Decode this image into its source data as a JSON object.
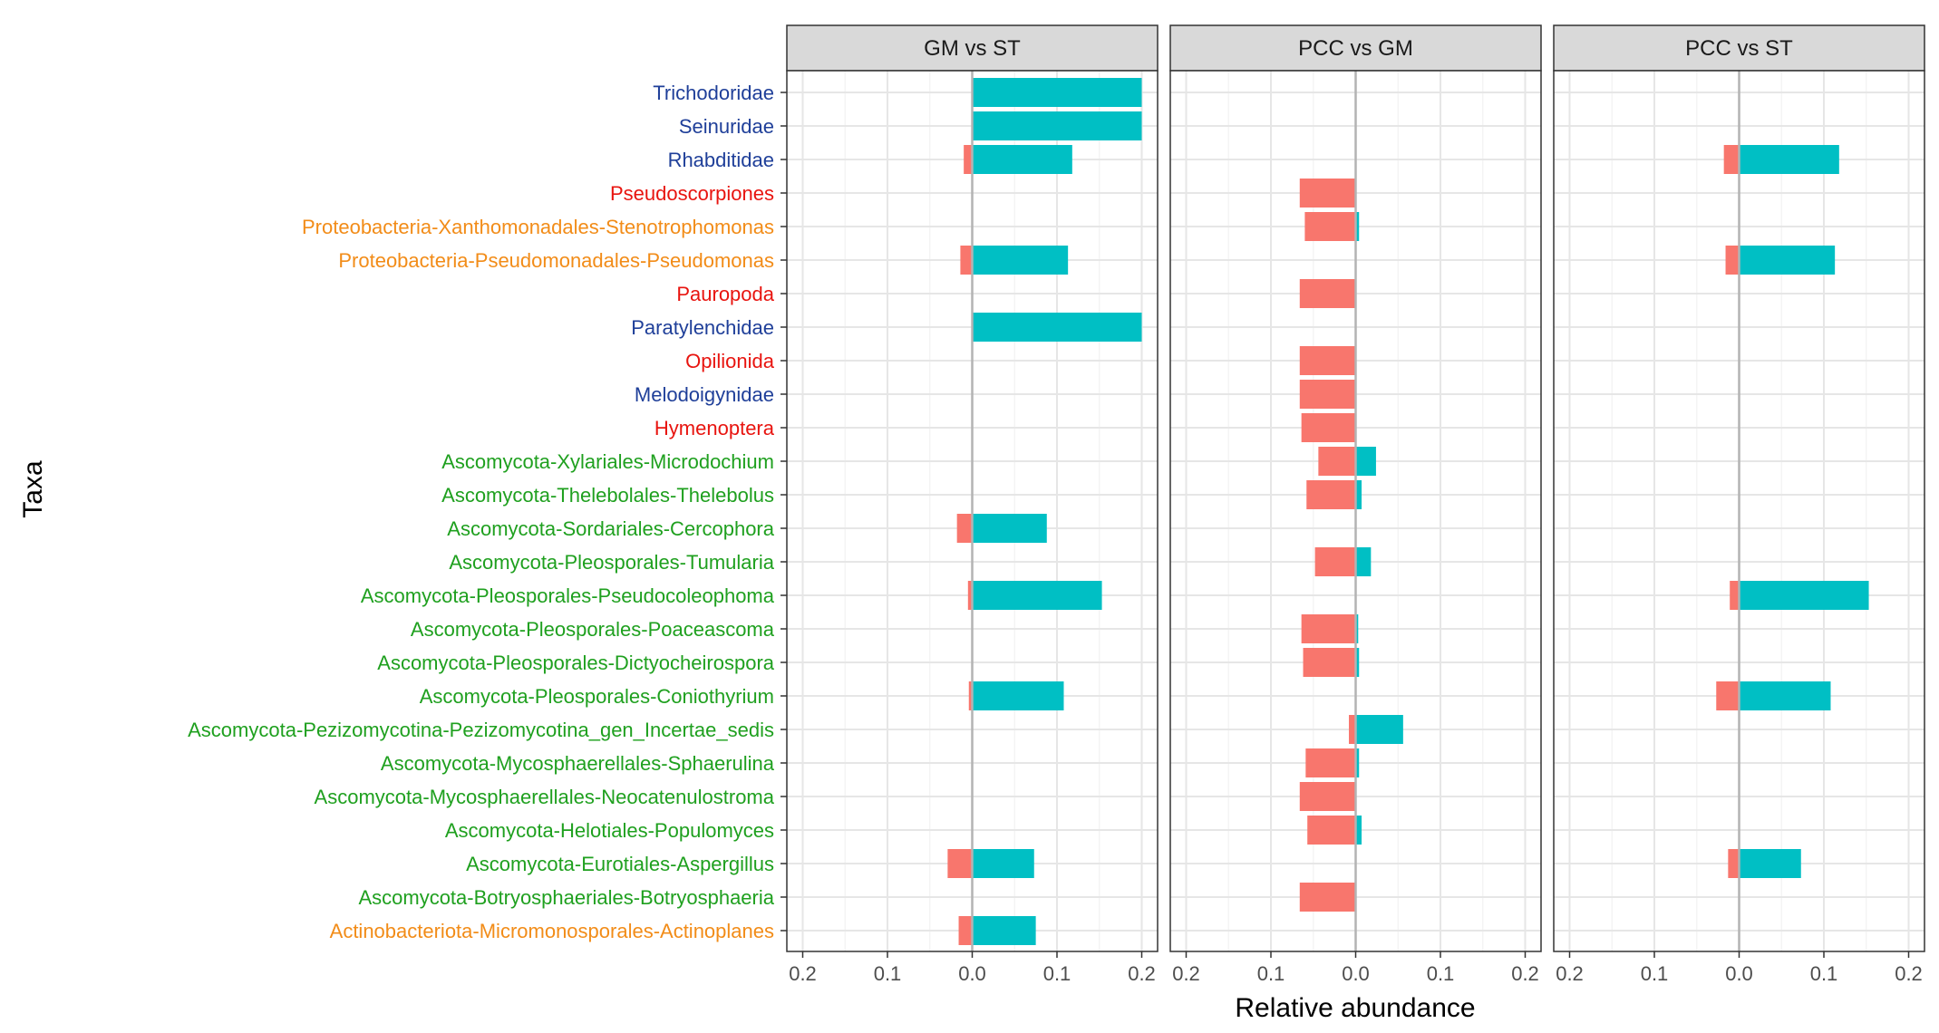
{
  "chart_data": {
    "type": "bar",
    "orientation": "horizontal",
    "xlabel": "Relative abundance",
    "ylabel": "Taxa",
    "xlim": [
      -0.2,
      0.2
    ],
    "x_ticks": [
      -0.2,
      -0.1,
      0.0,
      0.1,
      0.2
    ],
    "x_tick_labels": [
      "0.2",
      "0.1",
      "0.0",
      "0.1",
      "0.2"
    ],
    "colors": {
      "negative_bar": "#F8766D",
      "positive_bar": "#00BFC4",
      "nematode": "#1F3F99",
      "arthropod": "#E8140F",
      "bacteria": "#F28C18",
      "fungi": "#1FA01F"
    },
    "categories": [
      {
        "label": "Trichodoridae",
        "group": "nematode"
      },
      {
        "label": "Seinuridae",
        "group": "nematode"
      },
      {
        "label": "Rhabditidae",
        "group": "nematode"
      },
      {
        "label": "Pseudoscorpiones",
        "group": "arthropod"
      },
      {
        "label": "Proteobacteria-Xanthomonadales-Stenotrophomonas",
        "group": "bacteria"
      },
      {
        "label": "Proteobacteria-Pseudomonadales-Pseudomonas",
        "group": "bacteria"
      },
      {
        "label": "Pauropoda",
        "group": "arthropod"
      },
      {
        "label": "Paratylenchidae",
        "group": "nematode"
      },
      {
        "label": "Opilionida",
        "group": "arthropod"
      },
      {
        "label": "Melodoigynidae",
        "group": "nematode"
      },
      {
        "label": "Hymenoptera",
        "group": "arthropod"
      },
      {
        "label": "Ascomycota-Xylariales-Microdochium",
        "group": "fungi"
      },
      {
        "label": "Ascomycota-Thelebolales-Thelebolus",
        "group": "fungi"
      },
      {
        "label": "Ascomycota-Sordariales-Cercophora",
        "group": "fungi"
      },
      {
        "label": "Ascomycota-Pleosporales-Tumularia",
        "group": "fungi"
      },
      {
        "label": "Ascomycota-Pleosporales-Pseudocoleophoma",
        "group": "fungi"
      },
      {
        "label": "Ascomycota-Pleosporales-Poaceascoma",
        "group": "fungi"
      },
      {
        "label": "Ascomycota-Pleosporales-Dictyocheirospora",
        "group": "fungi"
      },
      {
        "label": "Ascomycota-Pleosporales-Coniothyrium",
        "group": "fungi"
      },
      {
        "label": "Ascomycota-Pezizomycotina-Pezizomycotina_gen_Incertae_sedis",
        "group": "fungi"
      },
      {
        "label": "Ascomycota-Mycosphaerellales-Sphaerulina",
        "group": "fungi"
      },
      {
        "label": "Ascomycota-Mycosphaerellales-Neocatenulostroma",
        "group": "fungi"
      },
      {
        "label": "Ascomycota-Helotiales-Populomyces",
        "group": "fungi"
      },
      {
        "label": "Ascomycota-Eurotiales-Aspergillus",
        "group": "fungi"
      },
      {
        "label": "Ascomycota-Botryosphaeriales-Botryosphaeria",
        "group": "fungi"
      },
      {
        "label": "Actinobacteriota-Micromonosporales-Actinoplanes",
        "group": "bacteria"
      }
    ],
    "panels": [
      {
        "title": "GM vs ST",
        "negative": [
          0,
          0,
          0.01,
          null,
          null,
          0.014,
          null,
          0,
          null,
          null,
          null,
          null,
          null,
          0.018,
          null,
          0.005,
          null,
          null,
          0.004,
          null,
          null,
          null,
          null,
          0.029,
          null,
          0.016
        ],
        "positive": [
          0.2,
          0.2,
          0.118,
          null,
          null,
          0.113,
          null,
          0.2,
          null,
          null,
          null,
          null,
          null,
          0.088,
          null,
          0.153,
          null,
          null,
          0.108,
          null,
          null,
          null,
          null,
          0.073,
          null,
          0.075
        ]
      },
      {
        "title": "PCC vs GM",
        "negative": [
          null,
          null,
          null,
          0.066,
          0.06,
          null,
          0.066,
          null,
          0.066,
          0.066,
          0.064,
          0.044,
          0.058,
          null,
          0.048,
          null,
          0.064,
          0.062,
          null,
          0.008,
          0.059,
          0.066,
          0.057,
          null,
          0.066,
          null
        ],
        "positive": [
          null,
          null,
          null,
          0,
          0.004,
          null,
          0,
          null,
          0,
          0,
          0,
          0.024,
          0.007,
          null,
          0.018,
          null,
          0.003,
          0.004,
          null,
          0.056,
          0.004,
          0.001,
          0.007,
          null,
          0,
          null
        ]
      },
      {
        "title": "PCC vs ST",
        "negative": [
          null,
          null,
          0.018,
          null,
          null,
          0.016,
          null,
          null,
          null,
          null,
          null,
          null,
          null,
          null,
          null,
          0.011,
          null,
          null,
          0.027,
          null,
          null,
          null,
          null,
          0.013,
          null,
          null
        ],
        "positive": [
          null,
          null,
          0.118,
          null,
          null,
          0.113,
          null,
          null,
          null,
          null,
          null,
          null,
          null,
          null,
          null,
          0.153,
          null,
          null,
          0.108,
          null,
          null,
          null,
          null,
          0.073,
          null,
          null
        ]
      }
    ]
  }
}
